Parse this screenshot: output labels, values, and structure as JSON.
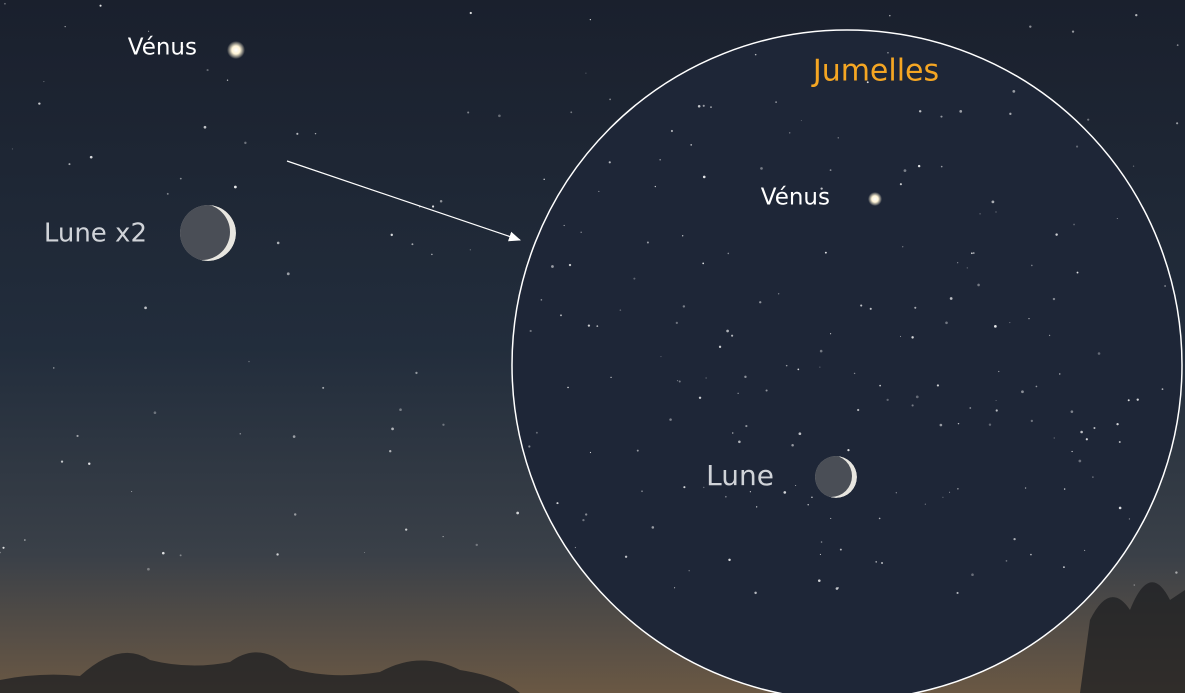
{
  "sky": {
    "venus_label": "Vénus",
    "moon_label": "Lune x2"
  },
  "binoculars": {
    "title": "Jumelles",
    "venus_label": "Vénus",
    "moon_label": "Lune"
  }
}
